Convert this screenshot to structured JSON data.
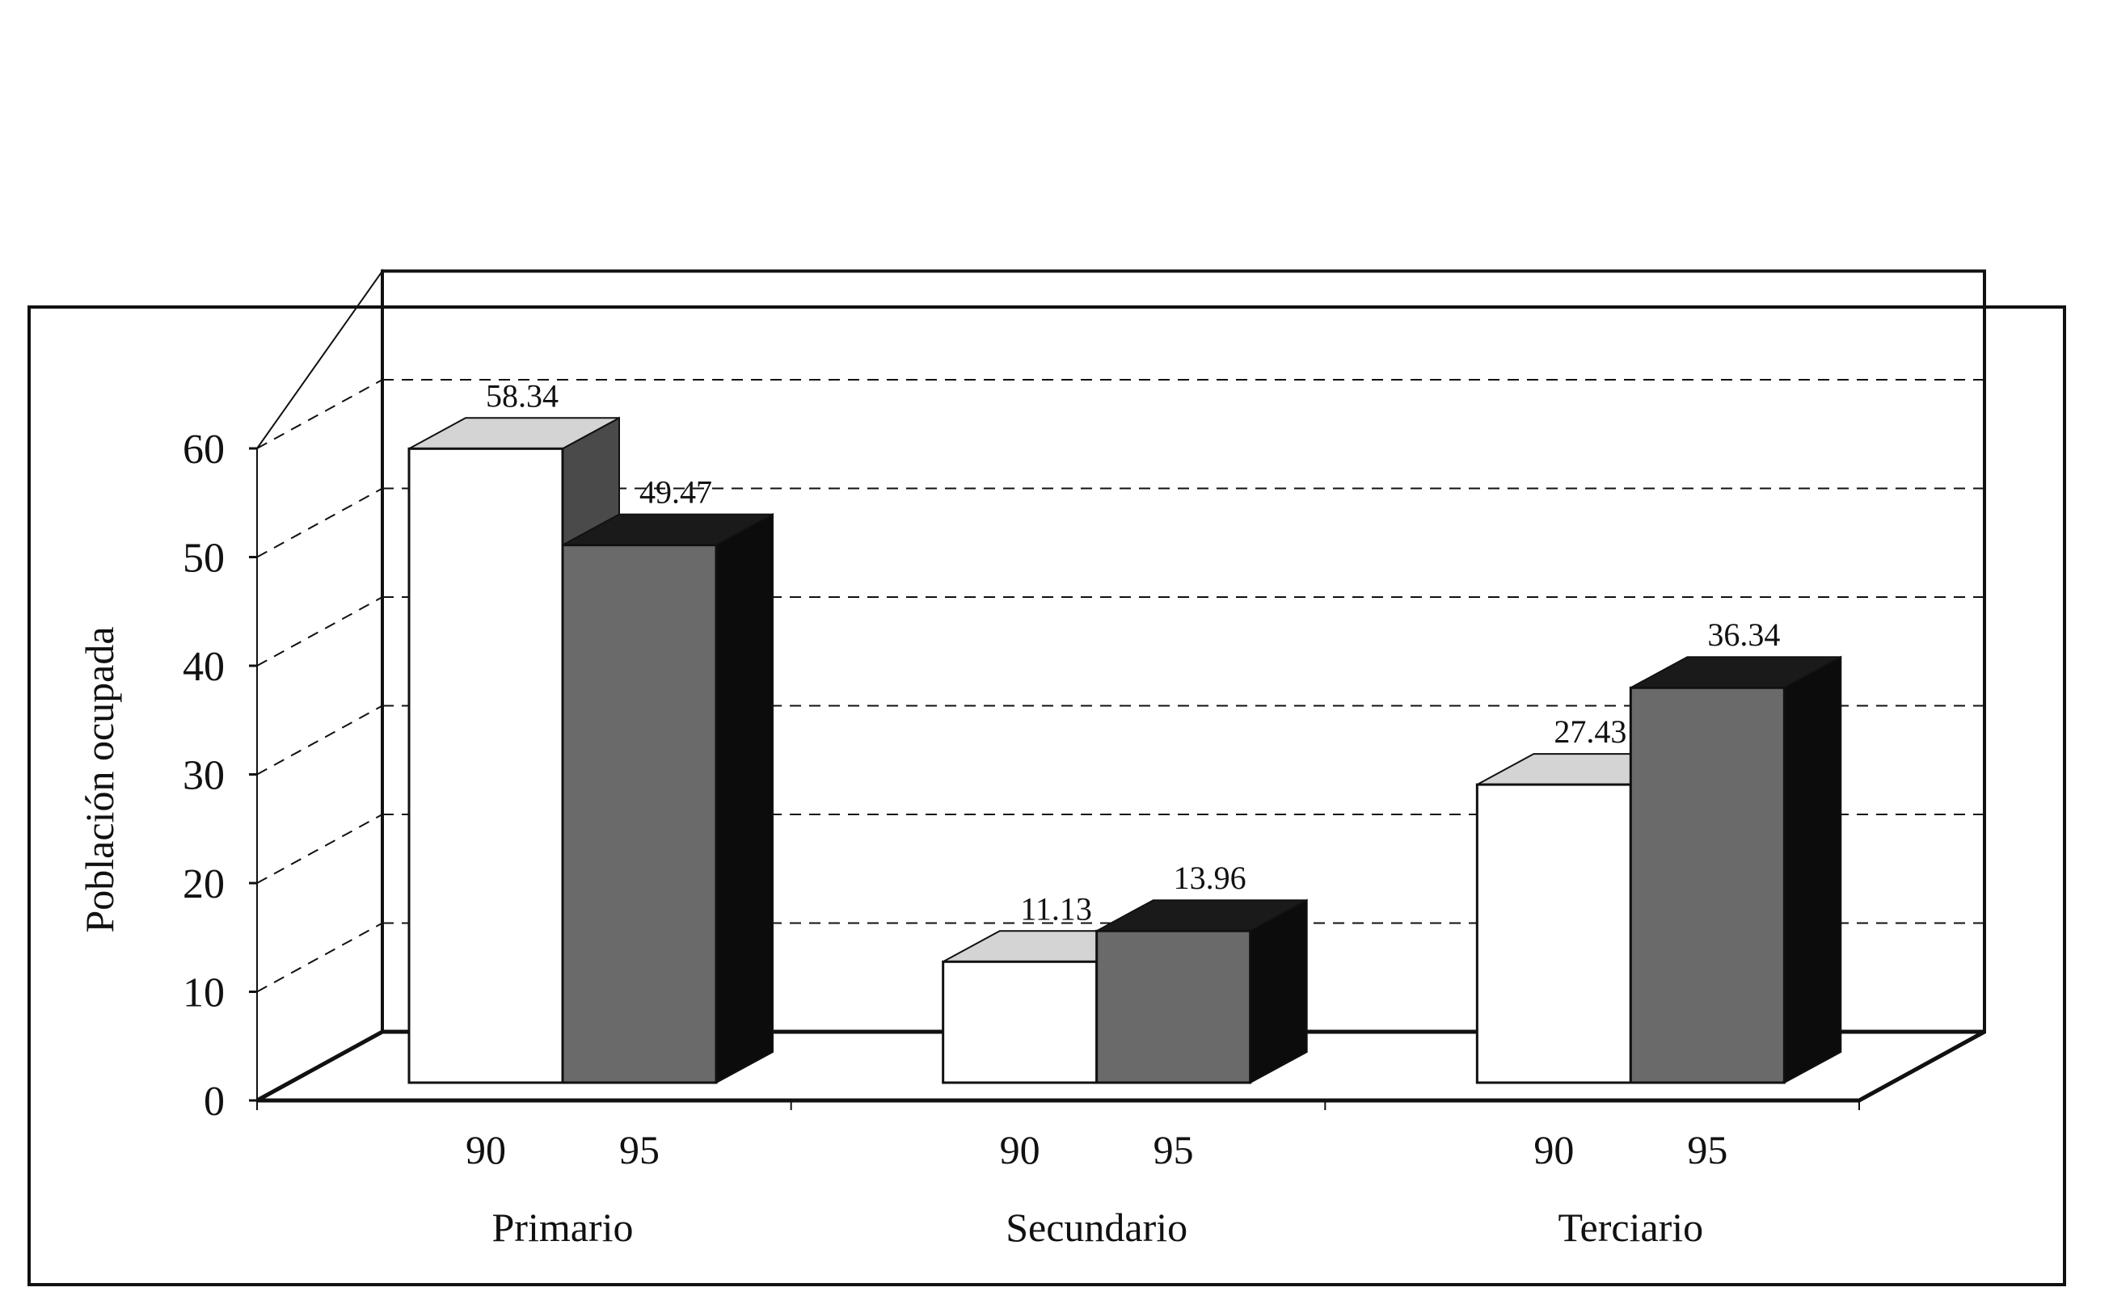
{
  "chart_data": {
    "type": "bar",
    "style": "3d-clustered-column",
    "ylabel": "Población ocupada",
    "ylim": [
      0,
      60
    ],
    "yticks": [
      "0",
      "10",
      "20",
      "30",
      "40",
      "50",
      "60"
    ],
    "categories": [
      "Primario",
      "Secundario",
      "Terciario"
    ],
    "series": [
      {
        "label": "90",
        "values": [
          58.34,
          11.13,
          27.43
        ],
        "data_labels": [
          "58.34",
          "11.13",
          "27.43"
        ],
        "face_color": "#ffffff",
        "top_color": "#d4d4d4",
        "side_color": "#4a4a4a"
      },
      {
        "label": "95",
        "values": [
          49.47,
          13.96,
          36.34
        ],
        "data_labels": [
          "49.47",
          "13.96",
          "36.34"
        ],
        "face_color": "#6a6a6a",
        "top_color": "#1a1a1a",
        "side_color": "#0c0c0c"
      }
    ],
    "grid": true,
    "grid_style": "dashed",
    "legend": "none"
  }
}
